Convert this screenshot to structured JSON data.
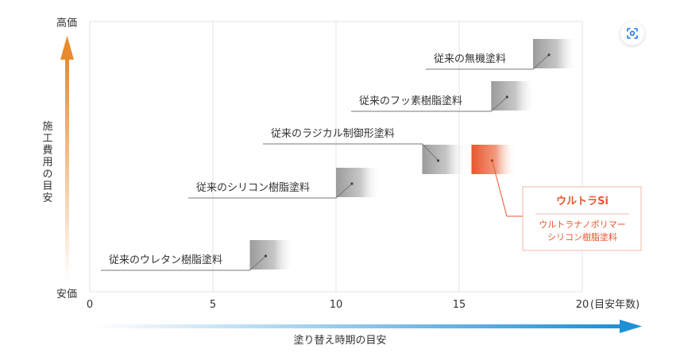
{
  "chart_data": {
    "type": "range-bar",
    "y_axis": {
      "label": "施工費用の目安",
      "top_label": "高価",
      "bottom_label": "安価"
    },
    "x_axis": {
      "label": "塗り替え時期の目安",
      "ticks": [
        "0",
        "5",
        "10",
        "15",
        "20"
      ],
      "unit": "(目安年数)",
      "range": [
        0,
        20
      ]
    },
    "series": [
      {
        "name": "従来のウレタン樹脂塗料",
        "start": 6.5,
        "end": 8.3,
        "level": 1
      },
      {
        "name": "従来のシリコン樹脂塗料",
        "start": 10.0,
        "end": 11.8,
        "level": 2
      },
      {
        "name": "従来のラジカル制御形塗料",
        "start": 13.5,
        "end": 15.3,
        "level": 3
      },
      {
        "name": "従来のフッ素樹脂塗料",
        "start": 16.3,
        "end": 18.1,
        "level": 4
      },
      {
        "name": "従来の無機塗料",
        "start": 18.0,
        "end": 19.8,
        "level": 5
      }
    ],
    "highlight": {
      "start": 15.5,
      "end": 17.3,
      "level": 3,
      "title": "ウルトラSi",
      "subtitle_line1": "ウルトラナノポリマー",
      "subtitle_line2": "シリコン樹脂塗料",
      "color": "#e8562e"
    },
    "grid": true,
    "colors": {
      "gray_bar": "#a0a0a0",
      "orange_arrow": "#e98a2c",
      "blue_arrow": "#1f8fd6",
      "grid": "#e3e3e3"
    }
  },
  "ui": {
    "lens_icon": "camera-lens-icon"
  }
}
